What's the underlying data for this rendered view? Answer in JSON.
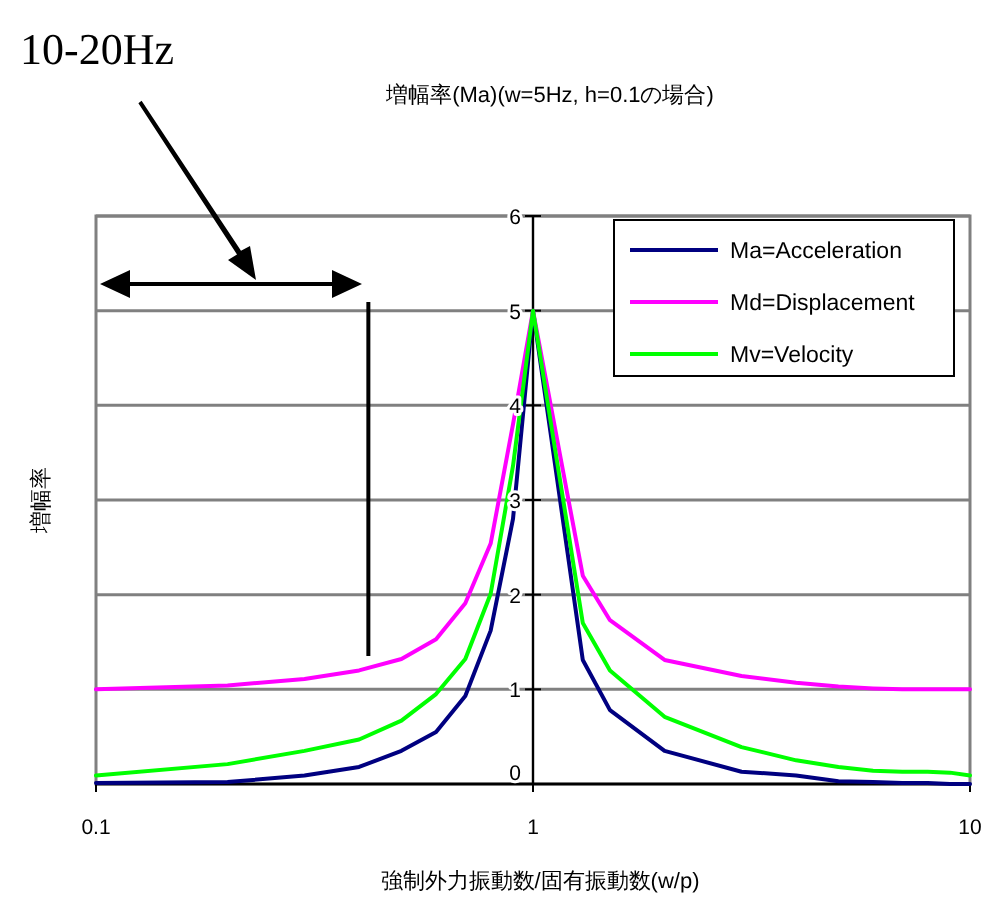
{
  "chart_data": {
    "type": "line",
    "title": "増幅率(Ma)(w=5Hz, h=0.1の場合)",
    "xlabel": "強制外力振動数/固有振動数(w/p)",
    "ylabel": "増幅率",
    "annotations": [
      "10-20Hz"
    ],
    "x": [
      0.1,
      0.2,
      0.3,
      0.4,
      0.5,
      0.6,
      0.7,
      0.8,
      0.9,
      1,
      1.1,
      1.2,
      1.3,
      1.5,
      2,
      3,
      4,
      5,
      6,
      7,
      8,
      9,
      10
    ],
    "series": [
      {
        "name": "Ma=Acceleration",
        "color": "#000080",
        "values": [
          0.01,
          0.02,
          0.09,
          0.18,
          0.35,
          0.55,
          0.93,
          1.62,
          2.8,
          5,
          3.67,
          2.44,
          1.31,
          0.78,
          0.35,
          0.13,
          0.09,
          0.03,
          0.02,
          0.01,
          0.01,
          0,
          0
        ]
      },
      {
        "name": "Md=Displacement",
        "color": "#ff00ff",
        "values": [
          1,
          1.04,
          1.11,
          1.2,
          1.32,
          1.53,
          1.91,
          2.54,
          3.8,
          5,
          3.98,
          3.05,
          2.2,
          1.73,
          1.31,
          1.14,
          1.07,
          1.03,
          1.01,
          1,
          1,
          1,
          1
        ]
      },
      {
        "name": "Mv=Velocity",
        "color": "#00ff00",
        "values": [
          0.09,
          0.21,
          0.35,
          0.47,
          0.67,
          0.95,
          1.32,
          2.01,
          3.36,
          5,
          3.8,
          2.71,
          1.7,
          1.2,
          0.71,
          0.39,
          0.25,
          0.18,
          0.14,
          0.13,
          0.13,
          0.12,
          0.09
        ]
      }
    ],
    "log": "x",
    "xlim": [
      0.1,
      10
    ],
    "xticks": [
      0.1,
      1,
      10
    ],
    "ylim": [
      0,
      6
    ],
    "yticks": [
      0,
      1,
      2,
      3,
      4,
      5,
      6
    ],
    "ref_lines": [
      {
        "axis": "x",
        "value": 0.42,
        "color": "#000000"
      }
    ],
    "grid": "y",
    "legend": "top right",
    "marker": "none",
    "line_style": "solid"
  }
}
